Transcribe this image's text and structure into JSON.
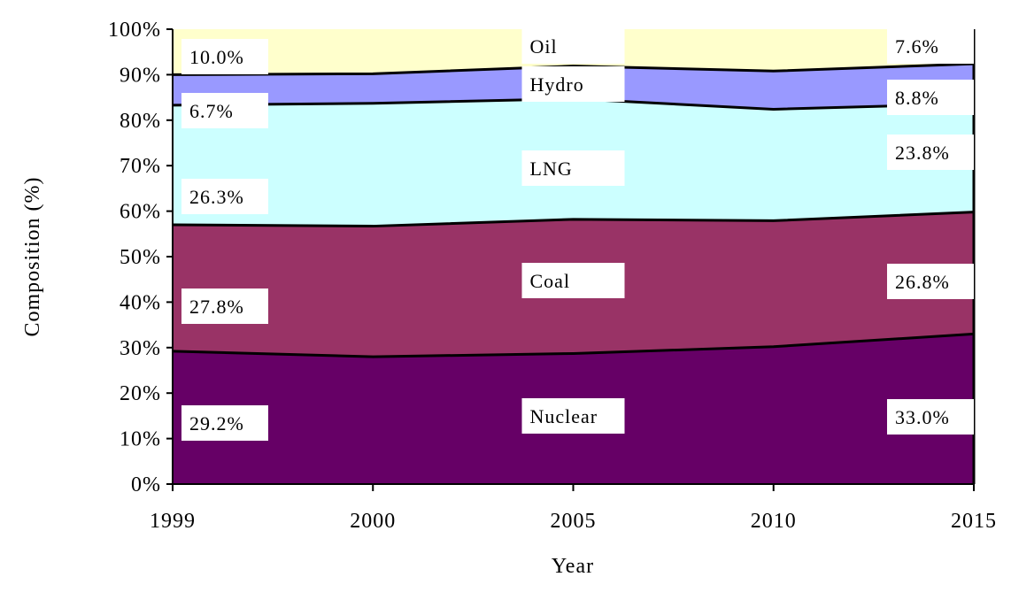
{
  "chart_data": {
    "type": "area",
    "stacked": true,
    "xlabel": "Year",
    "ylabel": "Composition (%)",
    "x": [
      "1999",
      "2000",
      "2005",
      "2010",
      "2015"
    ],
    "ylim": [
      0,
      100
    ],
    "ytick_values": [
      0,
      10,
      20,
      30,
      40,
      50,
      60,
      70,
      80,
      90,
      100
    ],
    "ytick_labels": [
      "0%",
      "10%",
      "20%",
      "30%",
      "40%",
      "50%",
      "60%",
      "70%",
      "80%",
      "90%",
      "100%"
    ],
    "grid": false,
    "legend": "none",
    "series": [
      {
        "name": "Nuclear",
        "color": "#660066",
        "values": [
          29.2,
          28.0,
          28.7,
          30.2,
          33.0
        ]
      },
      {
        "name": "Coal",
        "color": "#993366",
        "values": [
          27.8,
          28.7,
          29.5,
          27.7,
          26.8
        ]
      },
      {
        "name": "LNG",
        "color": "#ccffff",
        "values": [
          26.3,
          27.0,
          26.5,
          24.5,
          23.8
        ]
      },
      {
        "name": "Hydro",
        "color": "#9999ff",
        "values": [
          6.7,
          6.5,
          7.2,
          8.4,
          8.8
        ]
      },
      {
        "name": "Oil",
        "color": "#ffffcc",
        "values": [
          10.0,
          9.8,
          8.1,
          9.2,
          7.6
        ]
      }
    ],
    "value_labels": [
      {
        "text": "29.2%",
        "series": "Nuclear",
        "x": "1999"
      },
      {
        "text": "27.8%",
        "series": "Coal",
        "x": "1999"
      },
      {
        "text": "26.3%",
        "series": "LNG",
        "x": "1999"
      },
      {
        "text": "6.7%",
        "series": "Hydro",
        "x": "1999"
      },
      {
        "text": "10.0%",
        "series": "Oil",
        "x": "1999"
      },
      {
        "text": "33.0%",
        "series": "Nuclear",
        "x": "2015"
      },
      {
        "text": "26.8%",
        "series": "Coal",
        "x": "2015"
      },
      {
        "text": "23.8%",
        "series": "LNG",
        "x": "2015"
      },
      {
        "text": "8.8%",
        "series": "Hydro",
        "x": "2015"
      },
      {
        "text": "7.6%",
        "series": "Oil",
        "x": "2015"
      }
    ]
  }
}
